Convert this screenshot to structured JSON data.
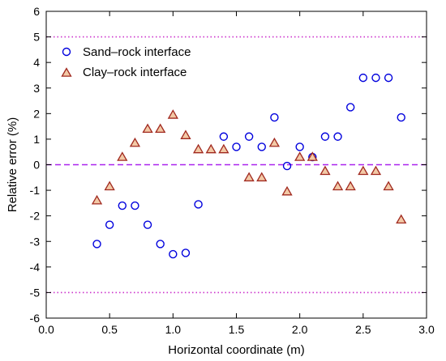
{
  "chart_data": {
    "type": "scatter",
    "xlabel": "Horizontal coordinate (m)",
    "ylabel": "Relative error (%)",
    "xlim": [
      0.0,
      3.0
    ],
    "ylim": [
      -6,
      6
    ],
    "xticks": [
      "0.0",
      "0.5",
      "1.0",
      "1.5",
      "2.0",
      "2.5",
      "3.0"
    ],
    "xtick_values": [
      0.0,
      0.5,
      1.0,
      1.5,
      2.0,
      2.5,
      3.0
    ],
    "yticks": [
      "-6",
      "-5",
      "-4",
      "-3",
      "-2",
      "-1",
      "0",
      "1",
      "2",
      "3",
      "4",
      "5",
      "6"
    ],
    "ytick_values": [
      -6,
      -5,
      -4,
      -3,
      -2,
      -1,
      0,
      1,
      2,
      3,
      4,
      5,
      6
    ],
    "legend_position": "top-left",
    "grid": false,
    "reference_lines": [
      {
        "y": 5,
        "style": "dotted",
        "color": "#cc33cc"
      },
      {
        "y": 0,
        "style": "dashed",
        "color": "#aa22ee"
      },
      {
        "y": -5,
        "style": "dotted",
        "color": "#cc33cc"
      }
    ],
    "series": [
      {
        "name": "Sand–rock interface",
        "marker": "circle",
        "color": "#0000dd",
        "x": [
          0.4,
          0.5,
          0.6,
          0.7,
          0.8,
          0.9,
          1.0,
          1.1,
          1.2,
          1.4,
          1.5,
          1.6,
          1.7,
          1.8,
          1.9,
          2.0,
          2.1,
          2.2,
          2.3,
          2.4,
          2.5,
          2.6,
          2.7,
          2.8
        ],
        "y": [
          -3.1,
          -2.35,
          -1.6,
          -1.6,
          -2.35,
          -3.1,
          -3.5,
          -3.45,
          -1.55,
          1.1,
          0.7,
          1.1,
          0.7,
          1.85,
          -0.05,
          0.7,
          0.3,
          1.1,
          1.1,
          2.25,
          3.4,
          3.4,
          3.4,
          1.85
        ]
      },
      {
        "name": "Clay–rock interface",
        "marker": "triangle",
        "color": "#a0281e",
        "fill": "#f2c9a6",
        "x": [
          0.4,
          0.5,
          0.6,
          0.7,
          0.8,
          0.9,
          1.0,
          1.1,
          1.2,
          1.3,
          1.4,
          1.6,
          1.7,
          1.8,
          1.9,
          2.0,
          2.1,
          2.2,
          2.3,
          2.4,
          2.5,
          2.6,
          2.7,
          2.8
        ],
        "y": [
          -1.4,
          -0.85,
          0.3,
          0.85,
          1.4,
          1.4,
          1.95,
          1.15,
          0.6,
          0.6,
          0.6,
          -0.5,
          -0.5,
          0.85,
          -1.05,
          0.3,
          0.3,
          -0.25,
          -0.85,
          -0.85,
          -0.25,
          -0.25,
          -0.85,
          -2.15
        ]
      }
    ]
  }
}
